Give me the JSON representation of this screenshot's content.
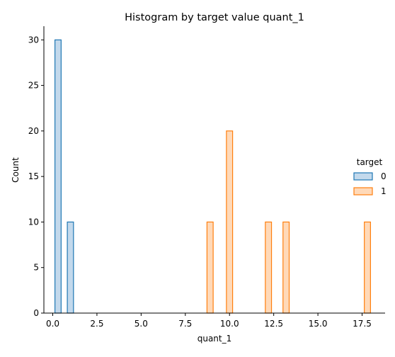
{
  "chart_data": {
    "type": "bar",
    "title": "Histogram by target value quant_1",
    "xlabel": "quant_1",
    "ylabel": "Count",
    "xlim": [
      -0.5,
      18.8
    ],
    "ylim": [
      0,
      31.5
    ],
    "xticks": [
      0.0,
      2.5,
      5.0,
      7.5,
      10.0,
      12.5,
      15.0,
      17.5
    ],
    "xtick_labels": [
      "0.0",
      "2.5",
      "5.0",
      "7.5",
      "10.0",
      "12.5",
      "15.0",
      "17.5"
    ],
    "yticks": [
      0,
      5,
      10,
      15,
      20,
      25,
      30
    ],
    "ytick_labels": [
      "0",
      "5",
      "10",
      "15",
      "20",
      "25",
      "30"
    ],
    "grid": false,
    "legend": {
      "title": "target",
      "placement": "right"
    },
    "bin_width": 0.35,
    "series": [
      {
        "name": "0",
        "edge_color": "#1f77b4",
        "fill_color": "#c3d9ec",
        "bars": [
          {
            "x": 0.3,
            "count": 30
          },
          {
            "x": 1.0,
            "count": 10
          }
        ]
      },
      {
        "name": "1",
        "edge_color": "#ff7f0e",
        "fill_color": "#ffd9b8",
        "bars": [
          {
            "x": 8.9,
            "count": 10
          },
          {
            "x": 10.0,
            "count": 20
          },
          {
            "x": 12.2,
            "count": 10
          },
          {
            "x": 13.2,
            "count": 10
          },
          {
            "x": 17.8,
            "count": 10
          }
        ]
      }
    ]
  }
}
